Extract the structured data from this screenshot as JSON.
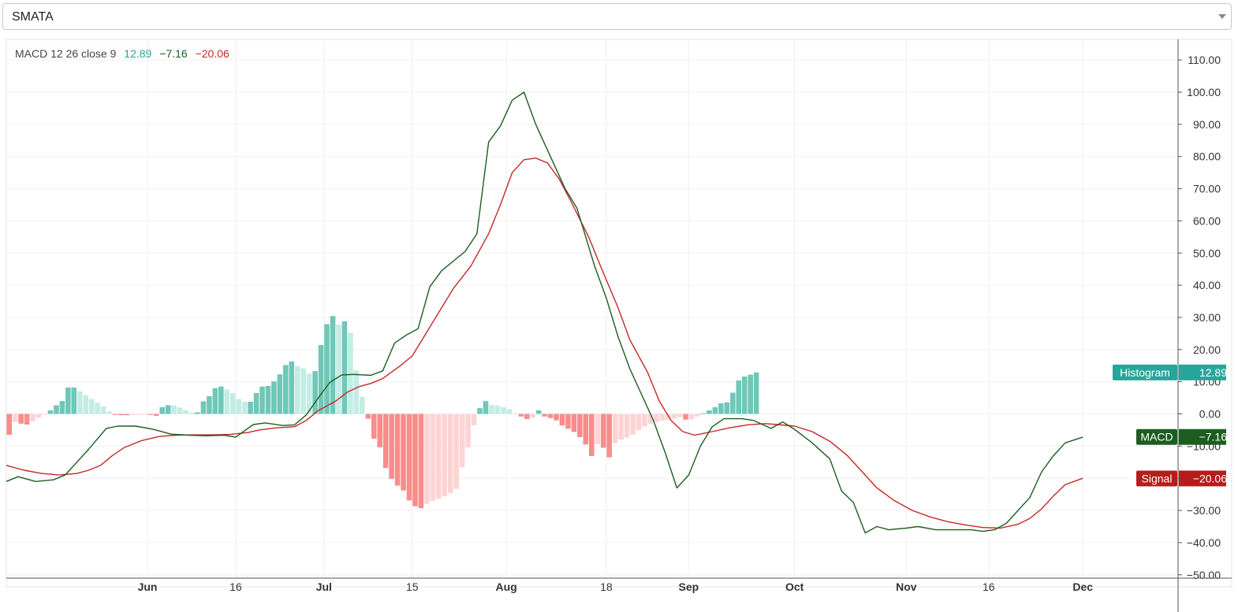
{
  "selector": {
    "value": "SMATA"
  },
  "legend": {
    "indicator": "MACD 12 26 close 9",
    "histogram_value": "12.89",
    "macd_value": "−7.16",
    "signal_value": "−20.06"
  },
  "colors": {
    "macd_line": "#1b5e20",
    "signal_line": "#c62828",
    "hist_pos_strong": "#6fc7b8",
    "hist_pos_weak": "#c3ece5",
    "hist_neg_strong": "#fb8c8c",
    "hist_neg_weak": "#fdd4d4",
    "histogram_tag": "#26a69a",
    "macd_tag": "#1b5e20",
    "signal_tag": "#b71c1c"
  },
  "chart_data": {
    "type": "line",
    "y_axis": {
      "ticks": [
        110,
        100,
        90,
        80,
        70,
        60,
        50,
        40,
        30,
        20,
        10,
        0,
        -10,
        -20,
        -30,
        -40,
        -50
      ],
      "tick_labels": [
        "110.00",
        "100.00",
        "90.00",
        "80.00",
        "70.00",
        "60.00",
        "50.00",
        "40.00",
        "30.00",
        "20.00",
        "10.00",
        "0.00",
        "−10.00",
        "−20.00",
        "−30.00",
        "−40.00",
        "−50.00"
      ],
      "ylim": [
        -50,
        115
      ]
    },
    "x_axis": {
      "tick_labels": [
        {
          "label": "Jun",
          "bold": true,
          "day": 24
        },
        {
          "label": "16",
          "bold": false,
          "day": 39
        },
        {
          "label": "Jul",
          "bold": true,
          "day": 54
        },
        {
          "label": "15",
          "bold": false,
          "day": 69
        },
        {
          "label": "Aug",
          "bold": true,
          "day": 85
        },
        {
          "label": "18",
          "bold": false,
          "day": 102
        },
        {
          "label": "Sep",
          "bold": true,
          "day": 116
        },
        {
          "label": "Oct",
          "bold": true,
          "day": 134
        },
        {
          "label": "Nov",
          "bold": true,
          "day": 153
        },
        {
          "label": "16",
          "bold": false,
          "day": 167
        },
        {
          "label": "Dec",
          "bold": true,
          "day": 183
        }
      ],
      "xlim": [
        0,
        198
      ]
    },
    "grid": true,
    "series": [
      {
        "name": "MACD",
        "values": [
          [
            0,
            -21
          ],
          [
            2,
            -19.5
          ],
          [
            5,
            -21
          ],
          [
            8,
            -20.5
          ],
          [
            10,
            -19
          ],
          [
            12,
            -15
          ],
          [
            14,
            -11
          ],
          [
            17,
            -4.5
          ],
          [
            19,
            -3.8
          ],
          [
            22,
            -3.8
          ],
          [
            25,
            -4.8
          ],
          [
            28,
            -6.3
          ],
          [
            31,
            -6.6
          ],
          [
            34,
            -6.8
          ],
          [
            37,
            -6.6
          ],
          [
            39,
            -7.2
          ],
          [
            42,
            -3.3
          ],
          [
            44,
            -2.8
          ],
          [
            47,
            -3.6
          ],
          [
            49,
            -3.4
          ],
          [
            51,
            -0.3
          ],
          [
            53,
            4.9
          ],
          [
            55,
            9.8
          ],
          [
            57,
            12.1
          ],
          [
            59,
            12.3
          ],
          [
            62,
            12
          ],
          [
            64,
            13.4
          ],
          [
            66,
            22
          ],
          [
            68,
            24.5
          ],
          [
            70,
            26.5
          ],
          [
            72,
            39.5
          ],
          [
            74,
            44.5
          ],
          [
            76,
            47.5
          ],
          [
            78,
            50.5
          ],
          [
            80,
            56
          ],
          [
            82,
            84.5
          ],
          [
            84,
            89.5
          ],
          [
            86,
            97.5
          ],
          [
            88,
            100
          ],
          [
            90,
            90
          ],
          [
            93,
            78
          ],
          [
            95,
            70
          ],
          [
            97,
            64
          ],
          [
            100,
            46
          ],
          [
            102,
            36
          ],
          [
            104,
            24
          ],
          [
            106,
            14
          ],
          [
            108,
            6
          ],
          [
            110,
            -2
          ],
          [
            112,
            -12
          ],
          [
            114,
            -23
          ],
          [
            116,
            -19
          ],
          [
            118,
            -10
          ],
          [
            120,
            -4
          ],
          [
            122,
            -1.5
          ],
          [
            125,
            -1.5
          ],
          [
            127,
            -2
          ],
          [
            130,
            -4.5
          ],
          [
            132,
            -2.5
          ],
          [
            134,
            -4.8
          ],
          [
            137,
            -9
          ],
          [
            140,
            -14
          ],
          [
            142,
            -24
          ],
          [
            144,
            -27.5
          ],
          [
            146,
            -37
          ],
          [
            148,
            -35
          ],
          [
            150,
            -36
          ],
          [
            153,
            -35.5
          ],
          [
            155,
            -35
          ],
          [
            158,
            -36
          ],
          [
            161,
            -36
          ],
          [
            164,
            -36
          ],
          [
            166,
            -36.5
          ],
          [
            168,
            -36
          ],
          [
            170,
            -34
          ],
          [
            172,
            -30
          ],
          [
            174,
            -26
          ],
          [
            176,
            -18
          ],
          [
            178,
            -13
          ],
          [
            180,
            -9
          ],
          [
            183,
            -7.2
          ]
        ]
      },
      {
        "name": "Signal",
        "values": [
          [
            0,
            -16
          ],
          [
            3,
            -17.5
          ],
          [
            6,
            -18.5
          ],
          [
            9,
            -19
          ],
          [
            12,
            -18.5
          ],
          [
            14,
            -17.5
          ],
          [
            16,
            -16
          ],
          [
            18,
            -13
          ],
          [
            20,
            -10.5
          ],
          [
            23,
            -8.3
          ],
          [
            26,
            -7
          ],
          [
            29,
            -6.6
          ],
          [
            32,
            -6.5
          ],
          [
            35,
            -6.5
          ],
          [
            38,
            -6.4
          ],
          [
            41,
            -5.8
          ],
          [
            43,
            -5
          ],
          [
            46,
            -4.3
          ],
          [
            49,
            -4
          ],
          [
            51,
            -2
          ],
          [
            53,
            1
          ],
          [
            56,
            4
          ],
          [
            58,
            6.8
          ],
          [
            60,
            8.5
          ],
          [
            62,
            9.5
          ],
          [
            64,
            11
          ],
          [
            67,
            15
          ],
          [
            69,
            18
          ],
          [
            71,
            24
          ],
          [
            74,
            33
          ],
          [
            76,
            39
          ],
          [
            79,
            46
          ],
          [
            82,
            56
          ],
          [
            84,
            65
          ],
          [
            86,
            75
          ],
          [
            88,
            79
          ],
          [
            90,
            79.5
          ],
          [
            92,
            78
          ],
          [
            94,
            73
          ],
          [
            96,
            66
          ],
          [
            99,
            55
          ],
          [
            101,
            46
          ],
          [
            104,
            33
          ],
          [
            106,
            23
          ],
          [
            109,
            13
          ],
          [
            111,
            4
          ],
          [
            113,
            -2
          ],
          [
            115,
            -5.5
          ],
          [
            117,
            -6.6
          ],
          [
            120,
            -5.5
          ],
          [
            123,
            -4.3
          ],
          [
            126,
            -3.4
          ],
          [
            129,
            -3
          ],
          [
            131,
            -3.3
          ],
          [
            134,
            -3.8
          ],
          [
            137,
            -5.5
          ],
          [
            140,
            -8.5
          ],
          [
            143,
            -13
          ],
          [
            146,
            -19
          ],
          [
            148,
            -23
          ],
          [
            151,
            -27
          ],
          [
            154,
            -30
          ],
          [
            157,
            -32
          ],
          [
            160,
            -33.5
          ],
          [
            163,
            -34.5
          ],
          [
            166,
            -35.3
          ],
          [
            169,
            -35.5
          ],
          [
            172,
            -34.3
          ],
          [
            174,
            -32.5
          ],
          [
            176,
            -29.5
          ],
          [
            178,
            -25.5
          ],
          [
            180,
            -22
          ],
          [
            183,
            -20
          ]
        ]
      },
      {
        "name": "Histogram",
        "values": [
          -6.5,
          -2.5,
          -3,
          -3.3,
          -2.3,
          -1.2,
          -0.1,
          1.1,
          2.7,
          4,
          8.2,
          8.2,
          7,
          5.8,
          4.6,
          3.5,
          2.3,
          0.8,
          -0.3,
          -0.4,
          -0.4,
          -0.3,
          -0.2,
          -0.1,
          -0.3,
          -0.6,
          2.1,
          2.7,
          2.6,
          2,
          1.2,
          0.4,
          0.5,
          3.9,
          5.5,
          8,
          8.5,
          7.6,
          6.5,
          4.6,
          3.8,
          3.8,
          6.5,
          8.5,
          8.7,
          10.1,
          12.3,
          15.2,
          16.3,
          14.8,
          14.2,
          12.5,
          13.3,
          21.4,
          27.9,
          30.4,
          27.8,
          28.8,
          25.2,
          13.5,
          5.3,
          -1.5,
          -7.7,
          -10.4,
          -16.8,
          -20.2,
          -22.3,
          -23.8,
          -26.9,
          -28.7,
          -29.3,
          -27.9,
          -27,
          -26.4,
          -25.6,
          -24.6,
          -23.3,
          -16.6,
          -10.4,
          -3.5,
          1.8,
          4,
          2.8,
          2.6,
          2.1,
          1.5,
          0.2,
          -0.8,
          -1.6,
          -1.2,
          1.1,
          -0.8,
          -1.3,
          -2,
          -3.6,
          -4.6,
          -5.6,
          -7.2,
          -9.5,
          -13.1,
          -9.4,
          -10.5,
          -13.5,
          -9.1,
          -8,
          -7.4,
          -6.5,
          -5,
          -3.9,
          -3.1,
          -2.6,
          -2.1,
          -1.8,
          -1.4,
          -1,
          -1.8,
          -1.7,
          -0.8,
          0.2,
          1.1,
          2.1,
          3.3,
          3.6,
          6.6,
          10.4,
          11.6,
          12.2,
          12.9
        ]
      }
    ],
    "price_tags": [
      {
        "name": "Histogram",
        "label": "Histogram",
        "value_label": "12.89",
        "value": 12.89
      },
      {
        "name": "MACD",
        "label": "MACD",
        "value_label": "−7.16",
        "value": -7.16
      },
      {
        "name": "Signal",
        "label": "Signal",
        "value_label": "−20.06",
        "value": -20.06
      }
    ]
  }
}
